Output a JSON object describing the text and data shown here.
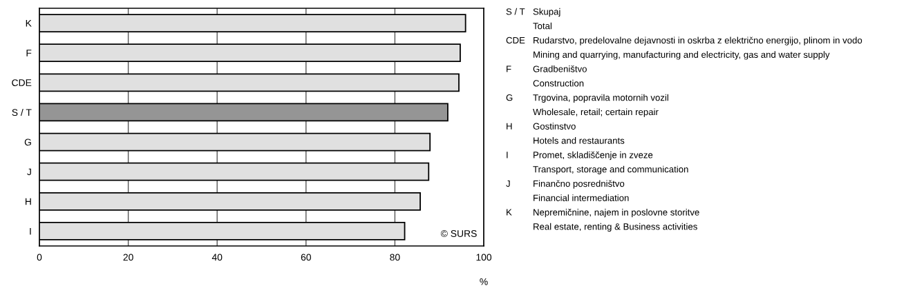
{
  "chart_data": {
    "type": "bar",
    "orientation": "horizontal",
    "categories": [
      "K",
      "F",
      "CDE",
      "S / T",
      "G",
      "J",
      "H",
      "I"
    ],
    "values": [
      95.9,
      94.7,
      94.4,
      91.9,
      87.9,
      87.6,
      85.7,
      82.2
    ],
    "colors": [
      "#e0e0e0",
      "#e0e0e0",
      "#e0e0e0",
      "#959595",
      "#e0e0e0",
      "#e0e0e0",
      "#e0e0e0",
      "#e0e0e0"
    ],
    "xlim": [
      0,
      100
    ],
    "xticks": [
      0,
      20,
      40,
      60,
      80,
      100
    ],
    "xlabel": "%",
    "grid": "x",
    "annotations": [
      "© SURS",
      "S / T",
      "Skupaj",
      "Total",
      "CDE",
      "Rudarstvo, predelovalne dejavnosti in oskrba z električno energijo, plinom in vodo",
      "Mining and quarrying, manufacturing and electricity, gas and water supply",
      "F",
      "Gradbeništvo",
      "Construction",
      "G",
      "Trgovina, popravila motornih vozil",
      "Wholesale, retail; certain repair",
      "H",
      "Gostinstvo",
      "Hotels and restaurants",
      "I",
      "Promet, skladiščenje in zveze",
      "Transport, storage and communication",
      "J",
      "Finančno posredništvo",
      "Financial intermediation",
      "K",
      "Nepremičnine, najem in poslovne storitve",
      "Real estate, renting & Business activities"
    ]
  }
}
